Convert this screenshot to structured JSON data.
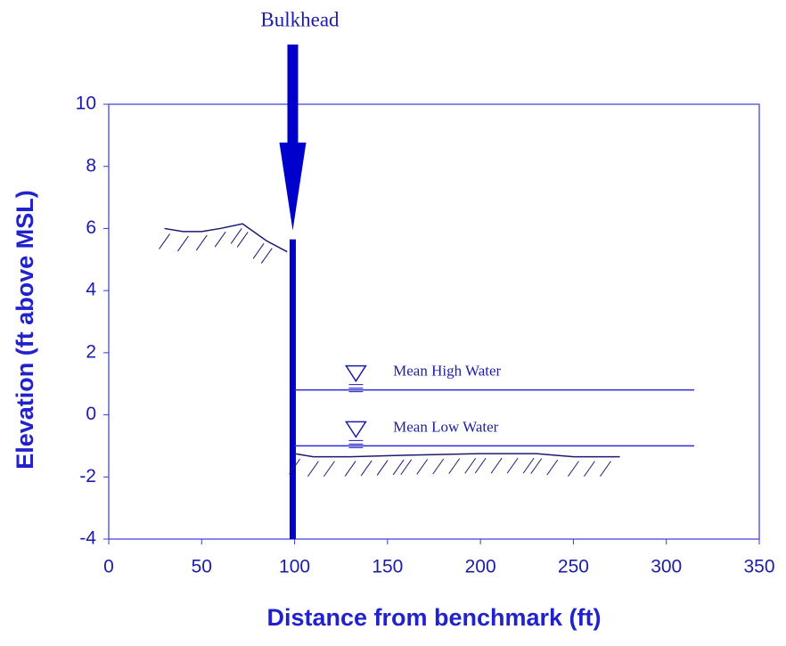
{
  "chart_data": {
    "type": "line",
    "annotations": [
      "Bulkhead",
      "Mean High Water",
      "Mean Low Water"
    ],
    "xlabel": "Distance from benchmark (ft)",
    "ylabel": "Elevation (ft above MSL)",
    "xlim": [
      0,
      350
    ],
    "xticks": [
      0,
      50,
      100,
      150,
      200,
      250,
      300,
      350
    ],
    "ylim": [
      -4,
      10
    ],
    "yticks": [
      -4,
      -2,
      0,
      2,
      4,
      6,
      8,
      10
    ],
    "grid": false,
    "series": [
      {
        "color": "#1a1a6e",
        "linewidth": 1.5,
        "hatch": true,
        "x": [
          30,
          40,
          50,
          60,
          72,
          85,
          96
        ],
        "values": [
          6.0,
          5.9,
          5.9,
          6.0,
          6.15,
          5.6,
          5.25
        ]
      },
      {
        "color": "#0000cc",
        "linewidth": 7,
        "hatch": false,
        "x": [
          99,
          99
        ],
        "values": [
          -4,
          5.65
        ]
      },
      {
        "color": "#2a2ad8",
        "linewidth": 1.5,
        "hatch": false,
        "x": [
          100,
          315
        ],
        "values": [
          0.8,
          0.8
        ]
      },
      {
        "color": "#2a2ad8",
        "linewidth": 1.5,
        "hatch": false,
        "x": [
          100,
          315
        ],
        "values": [
          -1.0,
          -1.0
        ]
      },
      {
        "color": "#1a1a6e",
        "linewidth": 1.5,
        "hatch": true,
        "x": [
          100,
          110,
          130,
          160,
          200,
          230,
          250,
          275
        ],
        "values": [
          -1.25,
          -1.35,
          -1.35,
          -1.3,
          -1.25,
          -1.25,
          -1.35,
          -1.35
        ]
      }
    ]
  }
}
